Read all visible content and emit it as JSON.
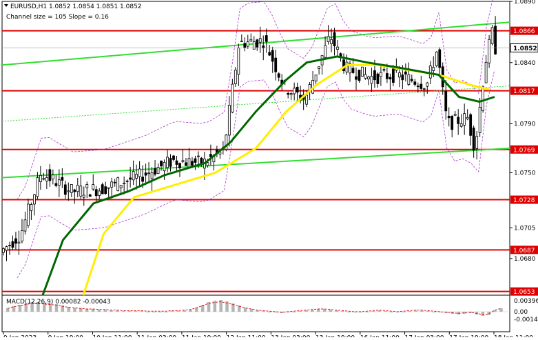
{
  "header": {
    "symbol_line": "EURUSD,H1  1.0852 1.0854 1.0851 1.0852",
    "channel_line": "Channel size = 105 Slope = 0.16"
  },
  "macd": {
    "label": "MACD(12,26,9) 0.00082 -0.00043",
    "axis_ticks": [
      "0.00396",
      "0.00",
      "-0.00143"
    ]
  },
  "chart_data": [
    {
      "type": "candlestick",
      "symbol": "EURUSD",
      "timeframe": "H1",
      "ohlc_current": {
        "open": 1.0852,
        "high": 1.0854,
        "low": 1.0851,
        "close": 1.0852
      },
      "ylim": [
        1.065,
        1.089
      ],
      "y_ticks": [
        "1.0890",
        "1.0840",
        "1.0790",
        "1.0750",
        "1.0705",
        "1.0680"
      ],
      "x_ticks": [
        "9 Jan 2023",
        "9 Jan 19:00",
        "10 Jan 11:00",
        "11 Jan 03:00",
        "11 Jan 19:00",
        "12 Jan 11:00",
        "13 Jan 03:00",
        "13 Jan 19:00",
        "16 Jan 11:00",
        "17 Jan 03:00",
        "17 Jan 19:00",
        "18 Jan 11:00"
      ],
      "current_price": "1.0852",
      "levels": [
        {
          "value": 1.0866,
          "label": "1.0866",
          "color": "#e00000"
        },
        {
          "value": 1.0817,
          "label": "1.0817",
          "color": "#e00000"
        },
        {
          "value": 1.0769,
          "label": "1.0769",
          "color": "#e00000"
        },
        {
          "value": 1.0728,
          "label": "1.0728",
          "color": "#e00000"
        },
        {
          "value": 1.0687,
          "label": "1.0687",
          "color": "#e00000"
        },
        {
          "value": 1.0653,
          "label": "1.0653",
          "color": "#e00000"
        }
      ],
      "channel": {
        "color": "#33dd33",
        "upper": [
          [
            0,
            1.0838
          ],
          [
            1.0,
            1.0873
          ]
        ],
        "lower": [
          [
            0,
            1.0746
          ],
          [
            1.0,
            1.077
          ]
        ],
        "mid": [
          [
            0,
            1.0792
          ],
          [
            1.0,
            1.0821
          ]
        ]
      },
      "ma_fast": {
        "color": "#006600",
        "points": [
          [
            0.08,
            1.065
          ],
          [
            0.12,
            1.0695
          ],
          [
            0.18,
            1.0725
          ],
          [
            0.25,
            1.0735
          ],
          [
            0.32,
            1.0748
          ],
          [
            0.4,
            1.0758
          ],
          [
            0.45,
            1.0775
          ],
          [
            0.5,
            1.08
          ],
          [
            0.56,
            1.0826
          ],
          [
            0.6,
            1.084
          ],
          [
            0.66,
            1.0845
          ],
          [
            0.72,
            1.084
          ],
          [
            0.78,
            1.0836
          ],
          [
            0.82,
            1.0833
          ],
          [
            0.86,
            1.083
          ],
          [
            0.9,
            1.0812
          ],
          [
            0.94,
            1.0808
          ],
          [
            0.97,
            1.0812
          ]
        ]
      },
      "ma_slow": {
        "color": "#ffee00",
        "points": [
          [
            0.16,
            1.065
          ],
          [
            0.2,
            1.07
          ],
          [
            0.26,
            1.073
          ],
          [
            0.34,
            1.074
          ],
          [
            0.42,
            1.075
          ],
          [
            0.5,
            1.077
          ],
          [
            0.56,
            1.08
          ],
          [
            0.62,
            1.0822
          ],
          [
            0.68,
            1.0838
          ],
          [
            0.74,
            1.0838
          ],
          [
            0.8,
            1.0834
          ],
          [
            0.86,
            1.083
          ],
          [
            0.92,
            1.0822
          ],
          [
            0.96,
            1.0818
          ]
        ]
      },
      "envelope_color": "#aa33cc"
    }
  ]
}
